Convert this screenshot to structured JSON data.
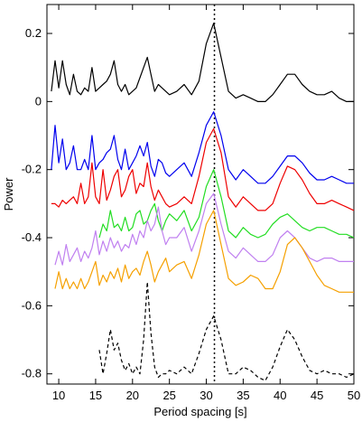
{
  "chart_data": {
    "type": "line",
    "x_label": "Period spacing [s]",
    "y_label": "Power",
    "x": [
      9,
      9.5,
      10,
      10.5,
      11,
      11.5,
      12,
      12.5,
      13,
      13.5,
      14,
      14.5,
      15,
      15.5,
      16,
      16.5,
      17,
      17.5,
      18,
      18.5,
      19,
      19.5,
      20,
      20.5,
      21,
      21.5,
      22,
      22.5,
      23,
      23.5,
      24,
      24.5,
      25,
      26,
      27,
      28,
      29,
      30,
      31,
      32,
      33,
      34,
      35,
      36,
      37,
      38,
      39,
      40,
      41,
      42,
      43,
      44,
      45,
      46,
      47,
      48,
      49,
      50
    ],
    "series": [
      {
        "color": "#000000",
        "values": [
          0.03,
          0.12,
          0.04,
          0.12,
          0.05,
          0.02,
          0.08,
          0.03,
          0.02,
          0.04,
          0.03,
          0.1,
          0.03,
          0.04,
          0.05,
          0.06,
          0.08,
          0.12,
          0.05,
          0.03,
          0.05,
          0.02,
          0.03,
          0.04,
          0.07,
          0.1,
          0.13,
          0.08,
          0.03,
          0.05,
          0.04,
          0.03,
          0.02,
          0.03,
          0.05,
          0.02,
          0.06,
          0.17,
          0.23,
          0.13,
          0.03,
          0.01,
          0.02,
          0.01,
          0,
          0,
          0.02,
          0.05,
          0.08,
          0.08,
          0.05,
          0.03,
          0.02,
          0.02,
          0.03,
          0.01,
          0,
          0
        ]
      },
      {
        "color": "#0000ee",
        "values": [
          -0.2,
          -0.07,
          -0.18,
          -0.11,
          -0.2,
          -0.18,
          -0.13,
          -0.2,
          -0.2,
          -0.17,
          -0.2,
          -0.1,
          -0.2,
          -0.18,
          -0.17,
          -0.15,
          -0.14,
          -0.1,
          -0.17,
          -0.2,
          -0.14,
          -0.2,
          -0.18,
          -0.16,
          -0.13,
          -0.16,
          -0.12,
          -0.19,
          -0.22,
          -0.17,
          -0.18,
          -0.21,
          -0.22,
          -0.2,
          -0.18,
          -0.22,
          -0.15,
          -0.07,
          -0.03,
          -0.1,
          -0.2,
          -0.23,
          -0.2,
          -0.22,
          -0.24,
          -0.24,
          -0.22,
          -0.19,
          -0.16,
          -0.16,
          -0.18,
          -0.21,
          -0.23,
          -0.23,
          -0.22,
          -0.23,
          -0.24,
          -0.24
        ]
      },
      {
        "color": "#ee0000",
        "values": [
          -0.3,
          -0.3,
          -0.31,
          -0.29,
          -0.3,
          -0.29,
          -0.28,
          -0.3,
          -0.24,
          -0.3,
          -0.28,
          -0.18,
          -0.28,
          -0.3,
          -0.2,
          -0.29,
          -0.26,
          -0.22,
          -0.2,
          -0.28,
          -0.26,
          -0.22,
          -0.2,
          -0.27,
          -0.24,
          -0.25,
          -0.18,
          -0.25,
          -0.29,
          -0.26,
          -0.28,
          -0.3,
          -0.31,
          -0.3,
          -0.28,
          -0.3,
          -0.22,
          -0.12,
          -0.08,
          -0.15,
          -0.28,
          -0.31,
          -0.28,
          -0.3,
          -0.32,
          -0.32,
          -0.3,
          -0.24,
          -0.19,
          -0.2,
          -0.23,
          -0.27,
          -0.3,
          -0.3,
          -0.29,
          -0.3,
          -0.31,
          -0.32
        ]
      },
      {
        "color": "#22dd22",
        "values": [
          null,
          null,
          null,
          null,
          null,
          null,
          null,
          null,
          null,
          null,
          null,
          null,
          null,
          -0.4,
          -0.36,
          -0.38,
          -0.32,
          -0.37,
          -0.36,
          -0.38,
          -0.34,
          -0.38,
          -0.37,
          -0.33,
          -0.32,
          -0.36,
          -0.35,
          -0.32,
          -0.3,
          -0.35,
          -0.38,
          -0.35,
          -0.33,
          -0.35,
          -0.32,
          -0.38,
          -0.34,
          -0.25,
          -0.2,
          -0.28,
          -0.38,
          -0.4,
          -0.37,
          -0.39,
          -0.4,
          -0.39,
          -0.36,
          -0.34,
          -0.33,
          -0.35,
          -0.37,
          -0.38,
          -0.37,
          -0.37,
          -0.38,
          -0.39,
          -0.39,
          -0.4
        ]
      },
      {
        "color": "#c080f0",
        "values": [
          null,
          -0.48,
          -0.44,
          -0.48,
          -0.42,
          -0.47,
          -0.45,
          -0.43,
          -0.47,
          -0.44,
          -0.46,
          -0.43,
          -0.38,
          -0.45,
          -0.41,
          -0.44,
          -0.4,
          -0.43,
          -0.41,
          -0.44,
          -0.42,
          -0.43,
          -0.39,
          -0.42,
          -0.38,
          -0.4,
          -0.35,
          -0.38,
          -0.36,
          -0.31,
          -0.38,
          -0.42,
          -0.4,
          -0.4,
          -0.37,
          -0.44,
          -0.38,
          -0.3,
          -0.27,
          -0.36,
          -0.44,
          -0.46,
          -0.43,
          -0.45,
          -0.47,
          -0.47,
          -0.45,
          -0.4,
          -0.38,
          -0.4,
          -0.43,
          -0.46,
          -0.47,
          -0.46,
          -0.46,
          -0.47,
          -0.47,
          -0.47
        ]
      },
      {
        "color": "#f5a000",
        "values": [
          null,
          -0.55,
          -0.5,
          -0.55,
          -0.52,
          -0.55,
          -0.53,
          -0.55,
          -0.52,
          -0.55,
          -0.53,
          -0.5,
          -0.47,
          -0.54,
          -0.51,
          -0.53,
          -0.5,
          -0.52,
          -0.49,
          -0.53,
          -0.48,
          -0.52,
          -0.5,
          -0.49,
          -0.51,
          -0.47,
          -0.44,
          -0.48,
          -0.53,
          -0.5,
          -0.48,
          -0.46,
          -0.5,
          -0.48,
          -0.47,
          -0.52,
          -0.45,
          -0.36,
          -0.32,
          -0.42,
          -0.52,
          -0.54,
          -0.53,
          -0.51,
          -0.52,
          -0.55,
          -0.55,
          -0.5,
          -0.42,
          -0.4,
          -0.43,
          -0.47,
          -0.51,
          -0.54,
          -0.55,
          -0.56,
          -0.56,
          -0.56
        ]
      },
      {
        "color": "#000000",
        "dashed": true,
        "values": [
          null,
          null,
          null,
          null,
          null,
          null,
          null,
          null,
          null,
          null,
          null,
          null,
          null,
          -0.73,
          -0.8,
          -0.74,
          -0.67,
          -0.73,
          -0.71,
          -0.76,
          -0.79,
          -0.77,
          -0.8,
          -0.78,
          -0.8,
          -0.7,
          -0.53,
          -0.68,
          -0.78,
          -0.81,
          -0.8,
          -0.8,
          -0.79,
          -0.8,
          -0.78,
          -0.8,
          -0.74,
          -0.67,
          -0.63,
          -0.7,
          -0.8,
          -0.8,
          -0.78,
          -0.79,
          -0.81,
          -0.82,
          -0.78,
          -0.72,
          -0.67,
          -0.7,
          -0.75,
          -0.79,
          -0.8,
          -0.79,
          -0.8,
          -0.8,
          -0.81,
          -0.8
        ]
      }
    ],
    "vline": 31.1,
    "xlim": [
      8.4,
      50
    ],
    "xticks": [
      10,
      15,
      20,
      25,
      30,
      35,
      40,
      45,
      50
    ],
    "ylim": [
      -0.83,
      0.285
    ],
    "yticks": [
      0.2,
      0,
      -0.2,
      -0.4,
      -0.6,
      -0.8
    ]
  }
}
